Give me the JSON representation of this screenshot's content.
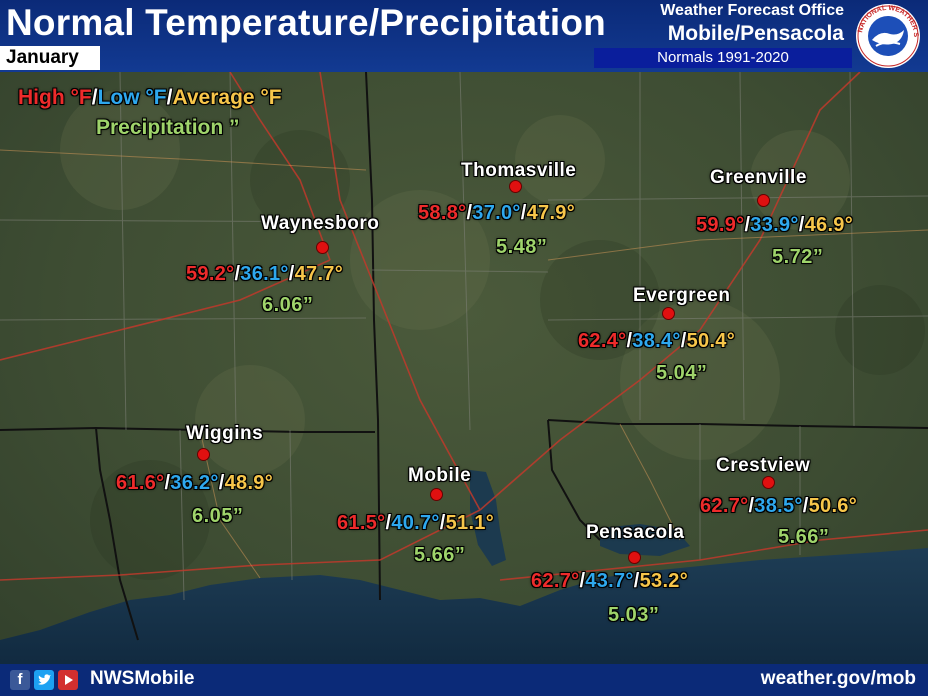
{
  "header": {
    "title": "Normal Temperature/Precipitation",
    "month": "January",
    "office_line1": "Weather Forecast Office",
    "office_line2": "Mobile/Pensacola",
    "normals": "Normals 1991-2020",
    "logo_text": "NATIONAL WEATHER SERVICE"
  },
  "legend": {
    "high": "High °F",
    "low": "Low °F",
    "average": "Average °F",
    "precipitation": "Precipitation ”",
    "sep": "/"
  },
  "stations": [
    {
      "name": "Thomasville",
      "high": "58.8°",
      "low": "37.0°",
      "avg": "47.9°",
      "precip": "5.48”"
    },
    {
      "name": "Greenville",
      "high": "59.9°",
      "low": "33.9°",
      "avg": "46.9°",
      "precip": "5.72”"
    },
    {
      "name": "Waynesboro",
      "high": "59.2°",
      "low": "36.1°",
      "avg": "47.7°",
      "precip": "6.06”"
    },
    {
      "name": "Evergreen",
      "high": "62.4°",
      "low": "38.4°",
      "avg": "50.4°",
      "precip": "5.04”"
    },
    {
      "name": "Wiggins",
      "high": "61.6°",
      "low": "36.2°",
      "avg": "48.9°",
      "precip": "6.05”"
    },
    {
      "name": "Mobile",
      "high": "61.5°",
      "low": "40.7°",
      "avg": "51.1°",
      "precip": "5.66”"
    },
    {
      "name": "Crestview",
      "high": "62.7°",
      "low": "38.5°",
      "avg": "50.6°",
      "precip": "5.66”"
    },
    {
      "name": "Pensacola",
      "high": "62.7°",
      "low": "43.7°",
      "avg": "53.2°",
      "precip": "5.03”"
    }
  ],
  "footer": {
    "social_handle": "NWSMobile",
    "url": "weather.gov/mob",
    "icons": [
      "facebook-icon",
      "twitter-icon",
      "youtube-icon"
    ]
  },
  "colors": {
    "high": "#ee2b2b",
    "low": "#2ea8ee",
    "average": "#f7c64a",
    "precip": "#9fd46b",
    "header_bg": "#0b2a78",
    "station_dot": "#e01010"
  }
}
